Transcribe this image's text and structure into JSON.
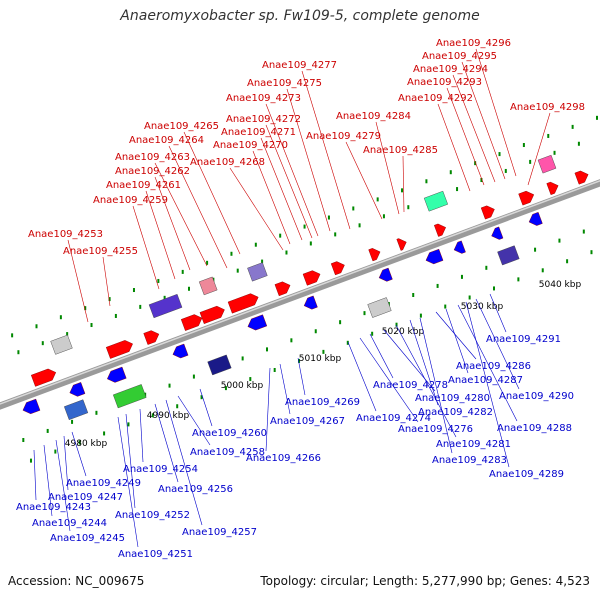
{
  "title": "Anaeromyxobacter sp. Fw109-5, complete genome",
  "footer": {
    "accession": "Accession: NC_009675",
    "summary": "Topology: circular; Length: 5,277,990 bp; Genes: 4,523"
  },
  "colors": {
    "forward_label": "#cc0000",
    "reverse_label": "#0000cc",
    "forward_arrow": "#ff0000",
    "reverse_arrow": "#0000ff",
    "backbone": "#9a9a9a",
    "tick": "#008800"
  },
  "scale_ticks": [
    "4980 kbp",
    "4990 kbp",
    "5000 kbp",
    "5010 kbp",
    "5020 kbp",
    "5030 kbp",
    "5040 kbp"
  ],
  "forward_genes": [
    "Anae109_4253",
    "Anae109_4255",
    "Anae109_4259",
    "Anae109_4261",
    "Anae109_4262",
    "Anae109_4263",
    "Anae109_4264",
    "Anae109_4265",
    "Anae109_4268",
    "Anae109_4270",
    "Anae109_4271",
    "Anae109_4272",
    "Anae109_4273",
    "Anae109_4275",
    "Anae109_4277",
    "Anae109_4279",
    "Anae109_4284",
    "Anae109_4285",
    "Anae109_4292",
    "Anae109_4293",
    "Anae109_4294",
    "Anae109_4295",
    "Anae109_4296",
    "Anae109_4298"
  ],
  "reverse_genes": [
    "Anae109_4243",
    "Anae109_4244",
    "Anae109_4245",
    "Anae109_4247",
    "Anae109_4249",
    "Anae109_4251",
    "Anae109_4252",
    "Anae109_4254",
    "Anae109_4256",
    "Anae109_4257",
    "Anae109_4258",
    "Anae109_4260",
    "Anae109_4266",
    "Anae109_4267",
    "Anae109_4269",
    "Anae109_4274",
    "Anae109_4276",
    "Anae109_4278",
    "Anae109_4280",
    "Anae109_4281",
    "Anae109_4282",
    "Anae109_4283",
    "Anae109_4286",
    "Anae109_4287",
    "Anae109_4288",
    "Anae109_4289",
    "Anae109_4290",
    "Anae109_4291"
  ]
}
